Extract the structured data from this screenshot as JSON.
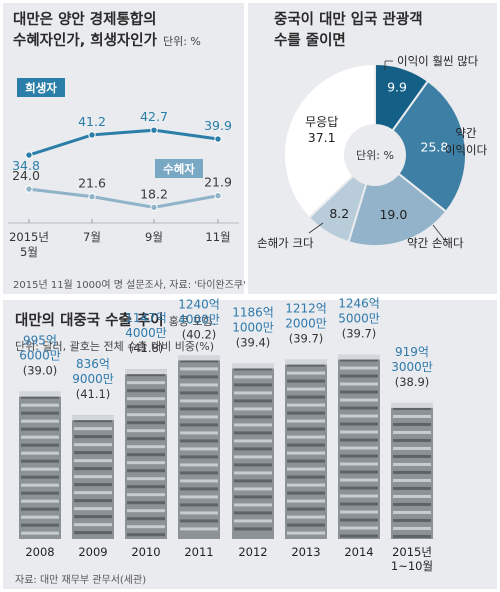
{
  "chart_data": [
    {
      "type": "line",
      "title_line1": "대만은 양안 경제통합의",
      "title_line2": "수혜자인가, 희생자인가",
      "unit": "단위: %",
      "x": [
        "2015년 5월",
        "7월",
        "9월",
        "11월"
      ],
      "x_lines": [
        [
          "2015년",
          "5월"
        ],
        [
          "7월"
        ],
        [
          "9월"
        ],
        [
          "11월"
        ]
      ],
      "series": [
        {
          "name": "희생자",
          "values": [
            34.8,
            41.2,
            42.7,
            39.9
          ],
          "color": "#2b7ea8"
        },
        {
          "name": "수혜자",
          "values": [
            24.0,
            21.6,
            18.2,
            21.9
          ],
          "color": "#8fb3c9"
        }
      ],
      "source": "2015년 11월 1000여 명 설문조사,  자료: '타이완즈쿠'"
    },
    {
      "type": "pie",
      "title_line1": "중국이 대만 입국 관광객",
      "title_line2": "수를 줄이면",
      "center_label": "단위: %",
      "slices": [
        {
          "label": "이익이 훨씬 많다",
          "value": 9.9,
          "color": "#145f85"
        },
        {
          "label": "약간 이익이다",
          "value": 25.8,
          "color": "#3e7fa6"
        },
        {
          "label": "약간 손해다",
          "value": 19.0,
          "color": "#92b3c9"
        },
        {
          "label": "손해가 크다",
          "value": 8.2,
          "color": "#b9ccd9"
        },
        {
          "label": "무응답",
          "value": 37.1,
          "color": "#ffffff"
        }
      ]
    },
    {
      "type": "bar",
      "title": "대만의 대중국 수출 추이",
      "title_note": "홍콩 포함.",
      "unit": "단위: 달러, 괄호는 전체 수출 대비 비중(%)",
      "categories": [
        "2008",
        "2009",
        "2010",
        "2011",
        "2012",
        "2013",
        "2014",
        "2015년 1~10월"
      ],
      "category_lines": [
        [
          "2008"
        ],
        [
          "2009"
        ],
        [
          "2010"
        ],
        [
          "2011"
        ],
        [
          "2012"
        ],
        [
          "2013"
        ],
        [
          "2014"
        ],
        [
          "2015년",
          "1~10월"
        ]
      ],
      "values_100m": [
        995.6,
        836.9,
        1147.4,
        1240.4,
        1186.1,
        1212.2,
        1246.5,
        919.3
      ],
      "value_lines": [
        [
          "995억",
          "6000만"
        ],
        [
          "836억",
          "9000만"
        ],
        [
          "1147억",
          "4000만"
        ],
        [
          "1240억",
          "4000만"
        ],
        [
          "1186억",
          "1000만"
        ],
        [
          "1212억",
          "2000만"
        ],
        [
          "1246억",
          "5000만"
        ],
        [
          "919억",
          "3000만"
        ]
      ],
      "shares": [
        "(39.0)",
        "(41.1)",
        "(41.8)",
        "(40.2)",
        "(39.4)",
        "(39.7)",
        "(39.7)",
        "(38.9)"
      ],
      "source": "자료: 대만 재무부 관무서(세관)"
    }
  ],
  "colors": {
    "accent": "#1f78b4",
    "panel": "#e9ebee"
  }
}
